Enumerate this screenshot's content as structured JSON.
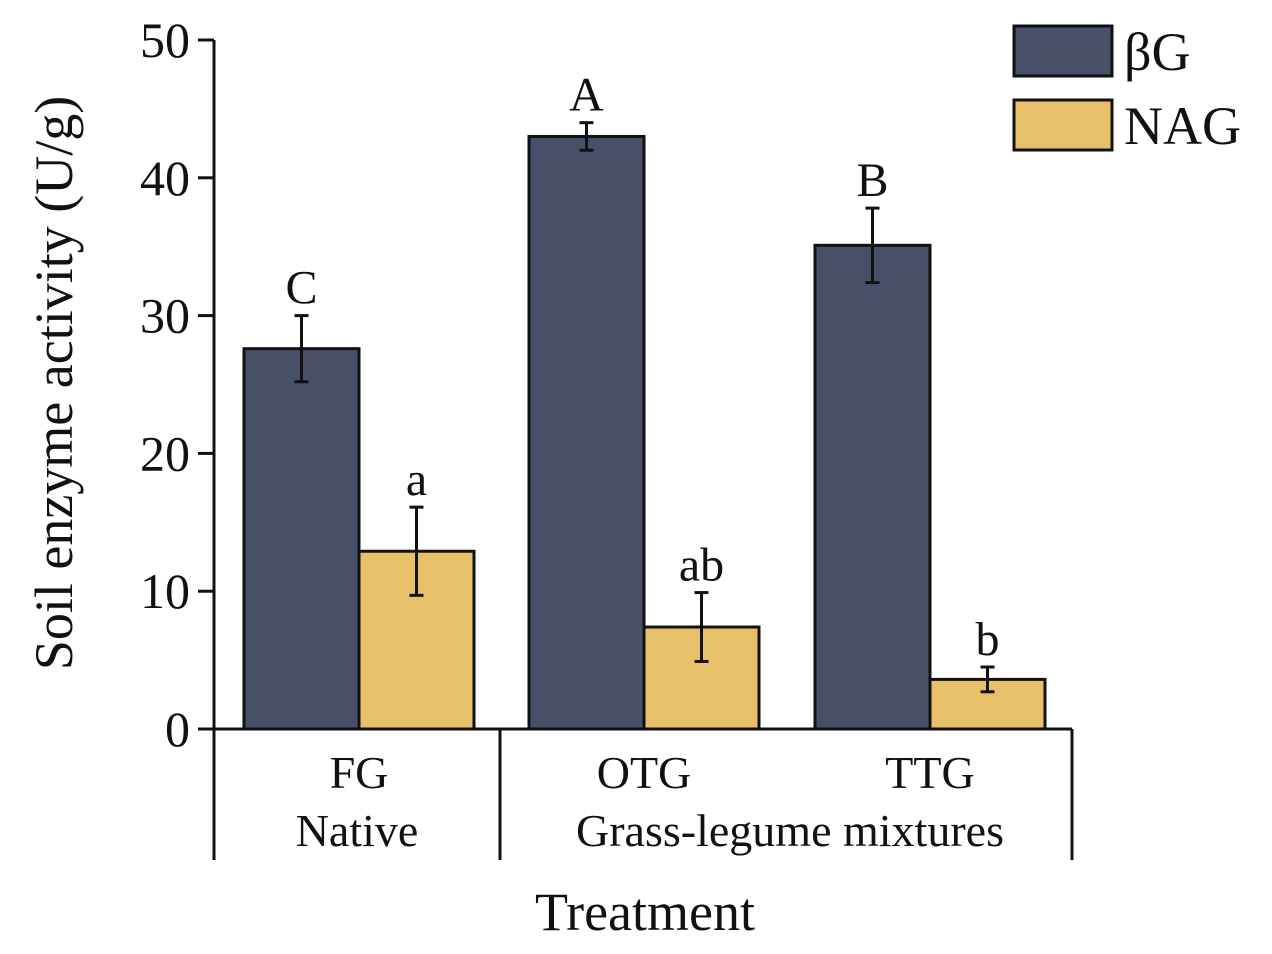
{
  "chart_data": {
    "type": "bar",
    "categories": [
      "FG",
      "OTG",
      "TTG"
    ],
    "groups": [
      {
        "label": "Native",
        "categories": [
          "FG"
        ]
      },
      {
        "label": "Grass-legume mixtures",
        "categories": [
          "OTG",
          "TTG"
        ]
      }
    ],
    "series": [
      {
        "name": "βG",
        "color": "#475068",
        "values": [
          27.6,
          43.0,
          35.1
        ],
        "errors": [
          2.4,
          1.0,
          2.7
        ],
        "significance": [
          "C",
          "A",
          "B"
        ]
      },
      {
        "name": "NAG",
        "color": "#E8C06A",
        "values": [
          12.9,
          7.4,
          3.6
        ],
        "errors": [
          3.2,
          2.5,
          0.9
        ],
        "significance": [
          "a",
          "ab",
          "b"
        ]
      }
    ],
    "xlabel": "Treatment",
    "ylabel": "Soil enzyme activity (U/g)",
    "ylim": [
      0,
      50
    ],
    "yticks": [
      0,
      10,
      20,
      30,
      40,
      50
    ],
    "grid": false,
    "legend_position": "top-right"
  }
}
